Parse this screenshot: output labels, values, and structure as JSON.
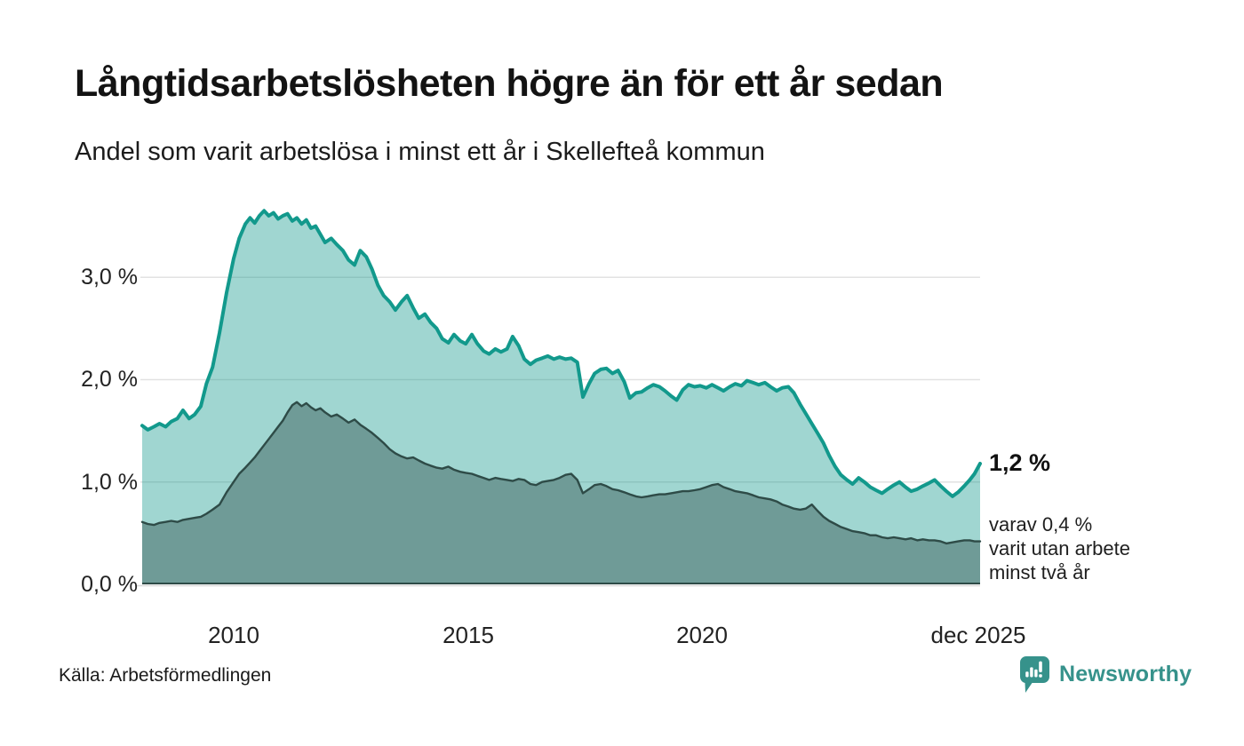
{
  "header": {
    "title": "Långtidsarbetslösheten högre än för ett år sedan",
    "subtitle": "Andel som varit arbetslösa i minst ett år i Skellefteå kommun"
  },
  "annotations": {
    "latest_value": "1,2 %",
    "note_line1": "varav 0,4 %",
    "note_line2": "varit utan arbete",
    "note_line3": "minst två år"
  },
  "source": {
    "label": "Källa: Arbetsförmedlingen"
  },
  "brand": {
    "name": "Newsworthy",
    "logo_icon": "bar-chart-speech-bubble"
  },
  "colors": {
    "accent_teal": "#12998c",
    "area_light_fill": "rgba(18,153,140,0.40)",
    "area_dark_fill": "#6f9b97",
    "line_dark": "#2e4b47",
    "grid": "#e2e2e2",
    "axis_light": "#d8d8d8",
    "brand_teal": "#36928b"
  },
  "chart_data": {
    "type": "area",
    "title": "Långtidsarbetslösheten högre än för ett år sedan",
    "subtitle": "Andel som varit arbetslösa i minst ett år i Skellefteå kommun",
    "unit": "%",
    "x_range": [
      2008.05,
      2025.92
    ],
    "ylim": [
      0,
      3.85
    ],
    "grid": "horizontal",
    "x_axis": {
      "ticks": [
        {
          "value": 2010,
          "label": "2010"
        },
        {
          "value": 2015,
          "label": "2015"
        },
        {
          "value": 2020,
          "label": "2020"
        },
        {
          "value": 2025.92,
          "label": "dec 2025"
        }
      ]
    },
    "y_axis": {
      "ticks": [
        {
          "value": 0,
          "label": "0,0 %"
        },
        {
          "value": 1,
          "label": "1,0 %"
        },
        {
          "value": 2,
          "label": "2,0 %"
        },
        {
          "value": 3,
          "label": "3,0 %"
        }
      ]
    },
    "series": [
      {
        "name": "Arbetslösa minst ett år",
        "latest_value": 1.2,
        "latest_label": "1,2 %"
      },
      {
        "name": "Utan arbete minst två år",
        "latest_value": 0.4,
        "latest_label": "varav 0,4 % varit utan arbete minst två år"
      }
    ],
    "points": [
      [
        2008.05,
        1.55,
        0.61
      ],
      [
        2008.17,
        1.51,
        0.59
      ],
      [
        2008.3,
        1.54,
        0.58
      ],
      [
        2008.42,
        1.57,
        0.6
      ],
      [
        2008.55,
        1.54,
        0.61
      ],
      [
        2008.67,
        1.59,
        0.62
      ],
      [
        2008.8,
        1.62,
        0.61
      ],
      [
        2008.92,
        1.7,
        0.63
      ],
      [
        2009.05,
        1.62,
        0.64
      ],
      [
        2009.17,
        1.66,
        0.65
      ],
      [
        2009.3,
        1.74,
        0.66
      ],
      [
        2009.42,
        1.96,
        0.69
      ],
      [
        2009.55,
        2.12,
        0.73
      ],
      [
        2009.7,
        2.46,
        0.78
      ],
      [
        2009.85,
        2.85,
        0.9
      ],
      [
        2010.0,
        3.18,
        1.0
      ],
      [
        2010.12,
        3.38,
        1.08
      ],
      [
        2010.25,
        3.52,
        1.14
      ],
      [
        2010.35,
        3.58,
        1.19
      ],
      [
        2010.45,
        3.53,
        1.24
      ],
      [
        2010.55,
        3.6,
        1.3
      ],
      [
        2010.65,
        3.65,
        1.36
      ],
      [
        2010.75,
        3.6,
        1.42
      ],
      [
        2010.85,
        3.63,
        1.48
      ],
      [
        2010.95,
        3.57,
        1.54
      ],
      [
        2011.05,
        3.6,
        1.6
      ],
      [
        2011.15,
        3.62,
        1.68
      ],
      [
        2011.25,
        3.55,
        1.75
      ],
      [
        2011.35,
        3.58,
        1.78
      ],
      [
        2011.45,
        3.52,
        1.74
      ],
      [
        2011.55,
        3.56,
        1.77
      ],
      [
        2011.65,
        3.48,
        1.73
      ],
      [
        2011.75,
        3.5,
        1.7
      ],
      [
        2011.85,
        3.42,
        1.72
      ],
      [
        2011.95,
        3.34,
        1.68
      ],
      [
        2012.08,
        3.38,
        1.64
      ],
      [
        2012.2,
        3.32,
        1.66
      ],
      [
        2012.33,
        3.26,
        1.62
      ],
      [
        2012.45,
        3.17,
        1.58
      ],
      [
        2012.58,
        3.12,
        1.61
      ],
      [
        2012.7,
        3.26,
        1.56
      ],
      [
        2012.83,
        3.2,
        1.52
      ],
      [
        2012.95,
        3.08,
        1.48
      ],
      [
        2013.08,
        2.92,
        1.43
      ],
      [
        2013.2,
        2.82,
        1.38
      ],
      [
        2013.33,
        2.76,
        1.32
      ],
      [
        2013.45,
        2.68,
        1.28
      ],
      [
        2013.58,
        2.76,
        1.25
      ],
      [
        2013.7,
        2.82,
        1.23
      ],
      [
        2013.83,
        2.7,
        1.24
      ],
      [
        2013.95,
        2.6,
        1.21
      ],
      [
        2014.08,
        2.64,
        1.18
      ],
      [
        2014.2,
        2.56,
        1.16
      ],
      [
        2014.33,
        2.5,
        1.14
      ],
      [
        2014.45,
        2.4,
        1.13
      ],
      [
        2014.58,
        2.36,
        1.15
      ],
      [
        2014.7,
        2.44,
        1.12
      ],
      [
        2014.83,
        2.38,
        1.1
      ],
      [
        2014.95,
        2.35,
        1.09
      ],
      [
        2015.08,
        2.44,
        1.08
      ],
      [
        2015.2,
        2.35,
        1.06
      ],
      [
        2015.33,
        2.28,
        1.04
      ],
      [
        2015.45,
        2.25,
        1.02
      ],
      [
        2015.58,
        2.3,
        1.04
      ],
      [
        2015.7,
        2.27,
        1.03
      ],
      [
        2015.83,
        2.3,
        1.02
      ],
      [
        2015.95,
        2.42,
        1.01
      ],
      [
        2016.08,
        2.33,
        1.03
      ],
      [
        2016.2,
        2.2,
        1.02
      ],
      [
        2016.33,
        2.15,
        0.98
      ],
      [
        2016.45,
        2.19,
        0.97
      ],
      [
        2016.58,
        2.21,
        1.0
      ],
      [
        2016.7,
        2.23,
        1.01
      ],
      [
        2016.83,
        2.2,
        1.02
      ],
      [
        2016.95,
        2.22,
        1.04
      ],
      [
        2017.08,
        2.2,
        1.07
      ],
      [
        2017.2,
        2.21,
        1.08
      ],
      [
        2017.33,
        2.17,
        1.02
      ],
      [
        2017.45,
        1.83,
        0.89
      ],
      [
        2017.58,
        1.96,
        0.93
      ],
      [
        2017.7,
        2.06,
        0.97
      ],
      [
        2017.83,
        2.1,
        0.98
      ],
      [
        2017.95,
        2.11,
        0.96
      ],
      [
        2018.08,
        2.06,
        0.93
      ],
      [
        2018.2,
        2.09,
        0.92
      ],
      [
        2018.33,
        1.98,
        0.9
      ],
      [
        2018.45,
        1.82,
        0.88
      ],
      [
        2018.58,
        1.87,
        0.86
      ],
      [
        2018.7,
        1.88,
        0.85
      ],
      [
        2018.83,
        1.92,
        0.86
      ],
      [
        2018.95,
        1.95,
        0.87
      ],
      [
        2019.08,
        1.93,
        0.88
      ],
      [
        2019.2,
        1.89,
        0.88
      ],
      [
        2019.33,
        1.84,
        0.89
      ],
      [
        2019.45,
        1.8,
        0.9
      ],
      [
        2019.58,
        1.9,
        0.91
      ],
      [
        2019.7,
        1.95,
        0.91
      ],
      [
        2019.83,
        1.93,
        0.92
      ],
      [
        2019.95,
        1.94,
        0.93
      ],
      [
        2020.08,
        1.92,
        0.95
      ],
      [
        2020.2,
        1.95,
        0.97
      ],
      [
        2020.33,
        1.92,
        0.98
      ],
      [
        2020.45,
        1.89,
        0.95
      ],
      [
        2020.58,
        1.93,
        0.93
      ],
      [
        2020.7,
        1.96,
        0.91
      ],
      [
        2020.83,
        1.94,
        0.9
      ],
      [
        2020.95,
        1.99,
        0.89
      ],
      [
        2021.08,
        1.97,
        0.87
      ],
      [
        2021.2,
        1.95,
        0.85
      ],
      [
        2021.33,
        1.97,
        0.84
      ],
      [
        2021.45,
        1.93,
        0.83
      ],
      [
        2021.58,
        1.89,
        0.81
      ],
      [
        2021.7,
        1.92,
        0.78
      ],
      [
        2021.83,
        1.93,
        0.76
      ],
      [
        2021.95,
        1.87,
        0.74
      ],
      [
        2022.08,
        1.76,
        0.73
      ],
      [
        2022.2,
        1.67,
        0.74
      ],
      [
        2022.33,
        1.57,
        0.78
      ],
      [
        2022.45,
        1.48,
        0.72
      ],
      [
        2022.58,
        1.38,
        0.66
      ],
      [
        2022.7,
        1.26,
        0.62
      ],
      [
        2022.83,
        1.15,
        0.59
      ],
      [
        2022.95,
        1.07,
        0.56
      ],
      [
        2023.08,
        1.02,
        0.54
      ],
      [
        2023.2,
        0.98,
        0.52
      ],
      [
        2023.33,
        1.04,
        0.51
      ],
      [
        2023.45,
        1.0,
        0.5
      ],
      [
        2023.58,
        0.95,
        0.48
      ],
      [
        2023.7,
        0.92,
        0.48
      ],
      [
        2023.83,
        0.89,
        0.46
      ],
      [
        2023.95,
        0.93,
        0.45
      ],
      [
        2024.08,
        0.97,
        0.46
      ],
      [
        2024.2,
        1.0,
        0.45
      ],
      [
        2024.33,
        0.95,
        0.44
      ],
      [
        2024.45,
        0.91,
        0.45
      ],
      [
        2024.58,
        0.93,
        0.43
      ],
      [
        2024.7,
        0.96,
        0.44
      ],
      [
        2024.83,
        0.99,
        0.43
      ],
      [
        2024.95,
        1.02,
        0.43
      ],
      [
        2025.08,
        0.96,
        0.42
      ],
      [
        2025.2,
        0.91,
        0.4
      ],
      [
        2025.33,
        0.86,
        0.41
      ],
      [
        2025.45,
        0.9,
        0.42
      ],
      [
        2025.58,
        0.96,
        0.43
      ],
      [
        2025.7,
        1.02,
        0.43
      ],
      [
        2025.8,
        1.08,
        0.42
      ],
      [
        2025.92,
        1.18,
        0.42
      ]
    ]
  }
}
